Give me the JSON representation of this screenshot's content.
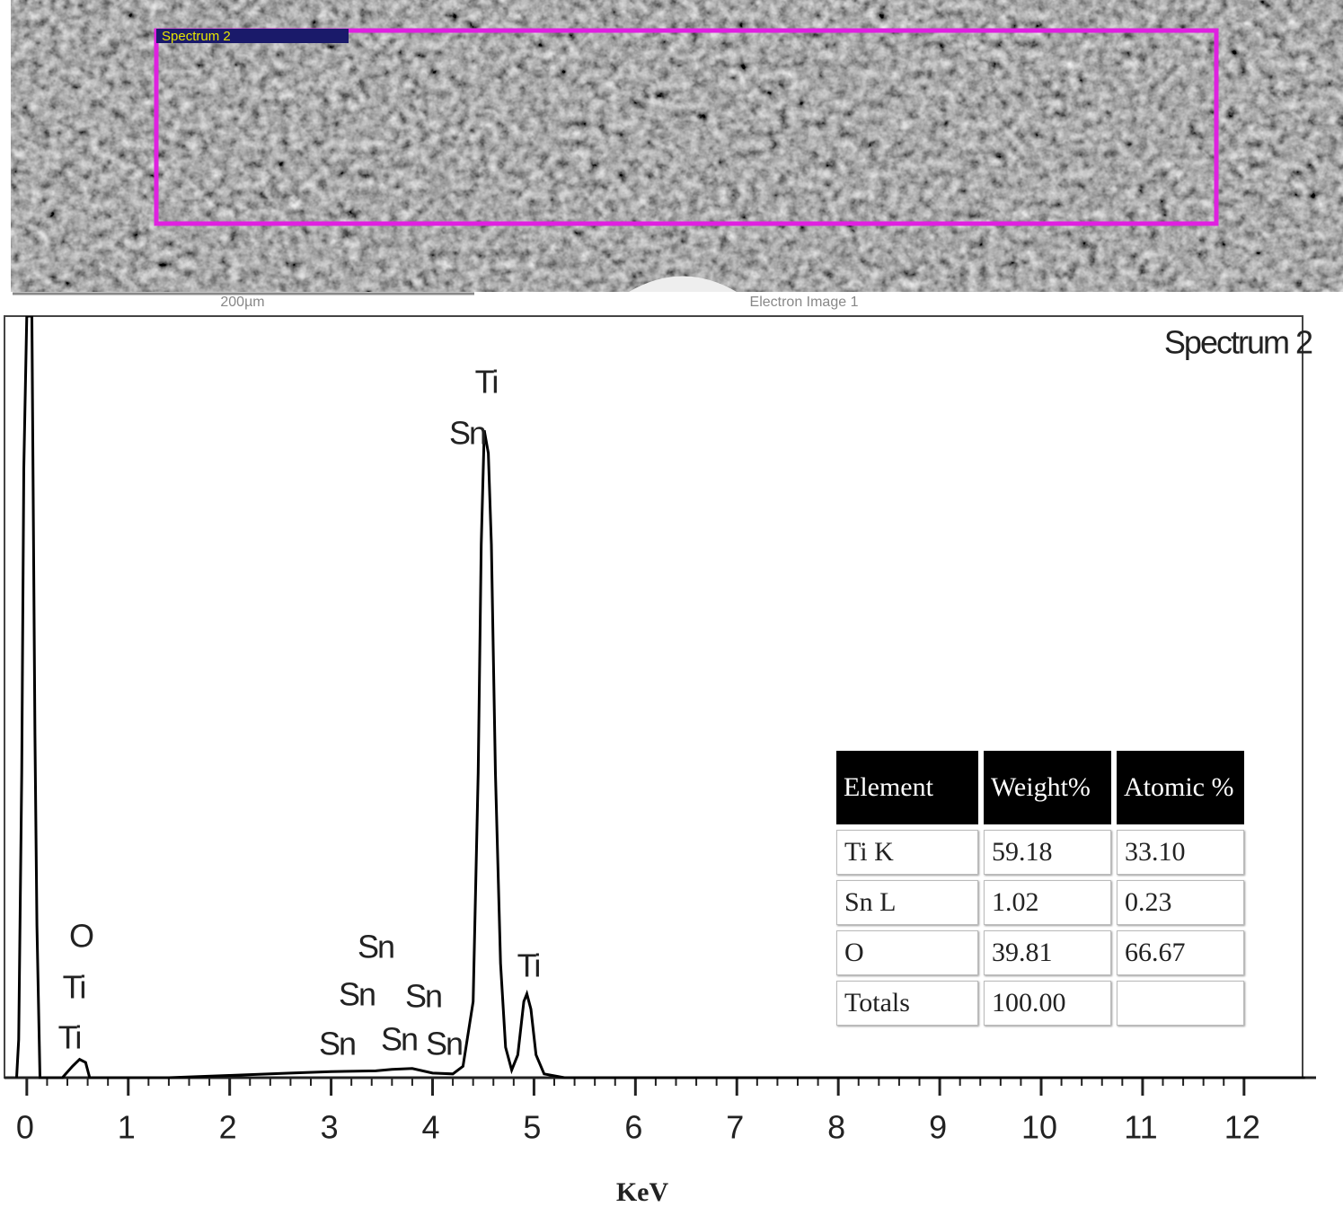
{
  "image": {
    "region_label": "Spectrum 2",
    "scale_label": "200µm",
    "caption": "Electron Image 1"
  },
  "chart_data": {
    "type": "line",
    "title": "Spectrum 2",
    "x_label": "KeV",
    "x": [
      -0.1,
      -0.08,
      -0.05,
      -0.03,
      0,
      0.05,
      0.08,
      0.1,
      0.13,
      0.35,
      0.45,
      0.52,
      0.58,
      0.62,
      1.4,
      2,
      2.6,
      3,
      3.44,
      3.6,
      3.8,
      4,
      4.2,
      4.3,
      4.4,
      4.45,
      4.48,
      4.51,
      4.55,
      4.58,
      4.62,
      4.67,
      4.72,
      4.78,
      4.84,
      4.9,
      4.93,
      4.97,
      5.02,
      5.1,
      5.3,
      12.6
    ],
    "series": [
      {
        "name": "Spectrum 2",
        "color": "#000000",
        "values": [
          0,
          5,
          40,
          80,
          100,
          100,
          45,
          20,
          0,
          0,
          1.5,
          2.4,
          2,
          0,
          0,
          0.3,
          0.6,
          0.8,
          0.9,
          1.1,
          1.2,
          0.6,
          0.5,
          1.5,
          10,
          40,
          70,
          85,
          82,
          70,
          40,
          15,
          4,
          1,
          3,
          10,
          11,
          9,
          3,
          0.5,
          0,
          0
        ]
      }
    ],
    "xlim": [
      -0.22,
      12.71
    ],
    "ylim": [
      0,
      100
    ],
    "xticks": [
      0,
      1,
      2,
      3,
      4,
      5,
      6,
      7,
      8,
      9,
      10,
      11,
      12
    ],
    "annotations": [
      "O",
      "Ti",
      "Ti",
      "Sn",
      "Sn",
      "Sn",
      "Sn",
      "Sn",
      "Sn",
      "Ti",
      "Sn",
      "Ti"
    ],
    "table": {
      "header": [
        "Element",
        "Weight%",
        "Atomic %"
      ],
      "rows": [
        [
          "Ti K",
          "59.18",
          "33.10"
        ],
        [
          "Sn L",
          "1.02",
          "0.23"
        ],
        [
          "O",
          "39.81",
          "66.67"
        ],
        [
          "Totals",
          "100.00",
          ""
        ]
      ]
    }
  }
}
